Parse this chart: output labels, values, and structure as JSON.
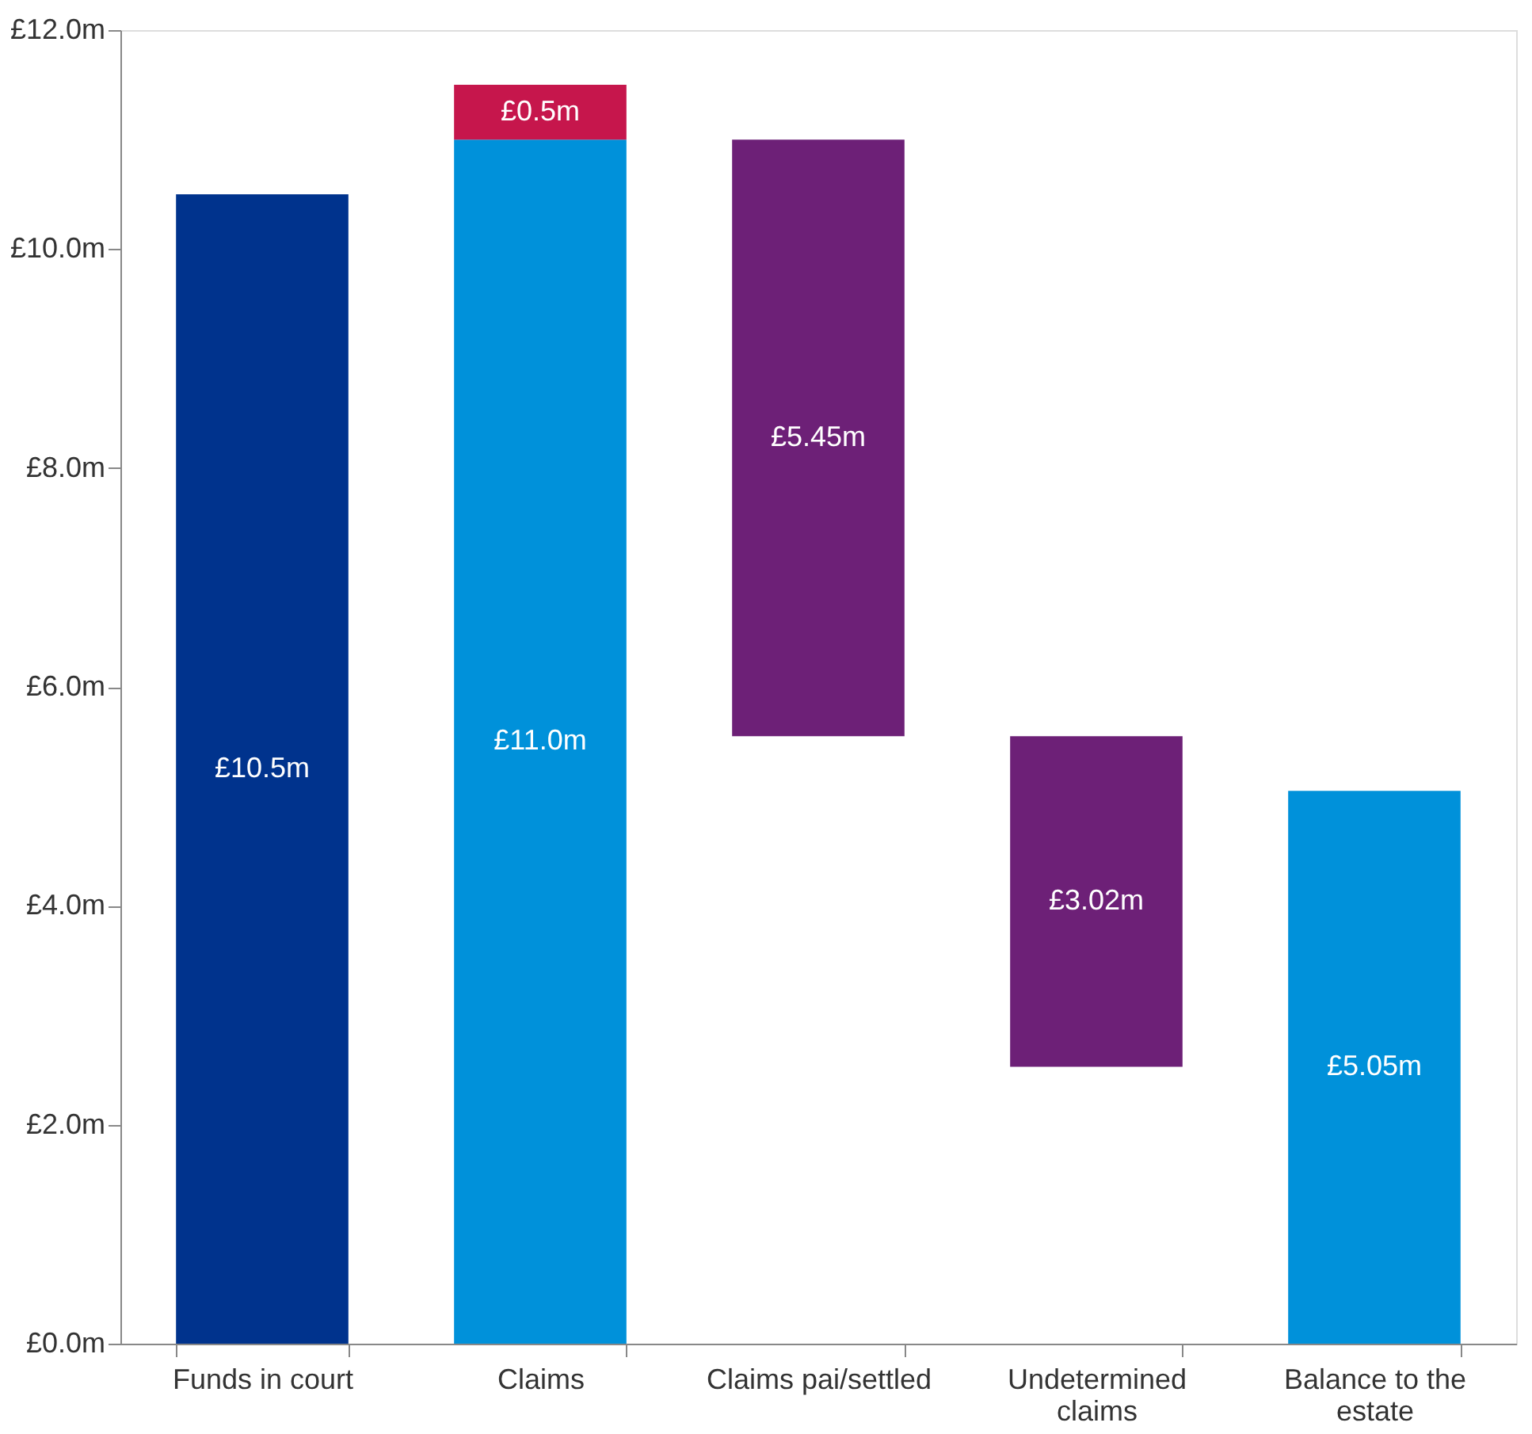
{
  "chart_data": {
    "type": "bar",
    "categories": [
      "Funds in court",
      "Claims",
      "Claims pai/settled",
      "Undetermined claims",
      "Balance to the estate"
    ],
    "series": [
      {
        "color": "#00338d",
        "values": [
          10.5,
          null,
          null,
          null,
          null
        ],
        "base": [
          0,
          null,
          null,
          null,
          null
        ],
        "value_labels": [
          "£10.5m",
          null,
          null,
          null,
          null
        ]
      },
      {
        "color": "#0091da",
        "values": [
          null,
          11.0,
          null,
          null,
          5.05
        ],
        "base": [
          null,
          0,
          null,
          null,
          0
        ],
        "value_labels": [
          null,
          "£11.0m",
          null,
          null,
          "£5.05m"
        ]
      },
      {
        "color": "#c6164c",
        "values": [
          null,
          0.5,
          null,
          null,
          null
        ],
        "base": [
          null,
          11.0,
          null,
          null,
          null
        ],
        "value_labels": [
          null,
          "£0.5m",
          null,
          null,
          null
        ]
      },
      {
        "color": "#6d2077",
        "values": [
          null,
          null,
          5.45,
          3.02,
          null
        ],
        "base": [
          null,
          null,
          5.55,
          2.53,
          null
        ],
        "value_labels": [
          null,
          null,
          "£5.45m",
          "£3.02m",
          null
        ]
      }
    ],
    "ylim": [
      0,
      12
    ],
    "yticks": [
      {
        "value": 0,
        "label": "£0.0m"
      },
      {
        "value": 2,
        "label": "£2.0m"
      },
      {
        "value": 4,
        "label": "£4.0m"
      },
      {
        "value": 6,
        "label": "£6.0m"
      },
      {
        "value": 8,
        "label": "£8.0m"
      },
      {
        "value": 10,
        "label": "£10.0m"
      },
      {
        "value": 12,
        "label": "£12.0m"
      }
    ],
    "grid": false,
    "legend": false
  }
}
